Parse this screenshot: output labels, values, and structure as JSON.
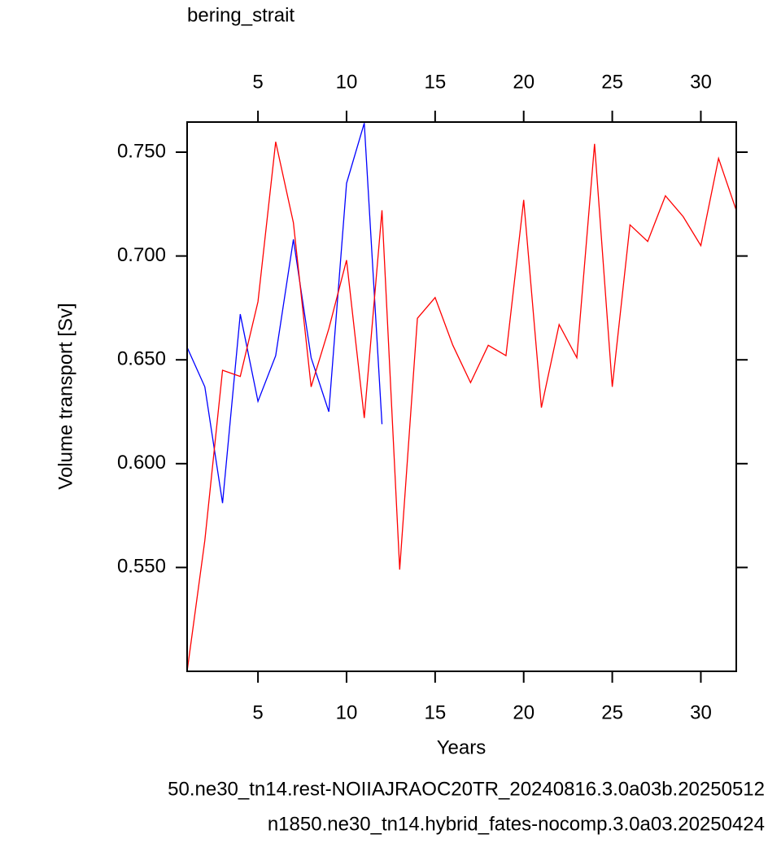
{
  "chart_data": {
    "type": "line",
    "title": "bering_strait",
    "x_label": "Years",
    "y_label": "Volume transport [Sv]",
    "x": [
      1,
      2,
      3,
      4,
      5,
      6,
      7,
      8,
      9,
      10,
      11,
      12,
      13,
      14,
      15,
      16,
      17,
      18,
      19,
      20,
      21,
      22,
      23,
      24,
      25,
      26,
      27,
      28,
      29,
      30,
      31,
      32
    ],
    "xlim": [
      1,
      32
    ],
    "xticks": [
      5,
      10,
      15,
      20,
      25,
      30
    ],
    "x2lim": [
      1,
      32
    ],
    "x2ticks": [
      5,
      10,
      15,
      20,
      25,
      30
    ],
    "ylim": [
      0.5,
      0.7645
    ],
    "yticks": [
      {
        "value": 0.55,
        "label": "0.550"
      },
      {
        "value": 0.6,
        "label": "0.600"
      },
      {
        "value": 0.65,
        "label": "0.650"
      },
      {
        "value": 0.7,
        "label": "0.700"
      },
      {
        "value": 0.75,
        "label": "0.750"
      }
    ],
    "series": [
      {
        "name": "50.ne30_tn14.rest-NOIIAJRAOC20TR_20240816.3.0a03b.20250512",
        "color": "#0000ff",
        "axis": "x",
        "values": [
          0.656,
          0.637,
          0.581,
          0.672,
          0.63,
          0.652,
          0.708,
          0.651,
          0.625,
          0.735,
          0.764,
          0.619,
          null,
          null,
          null,
          null,
          null,
          null,
          null,
          null,
          null,
          null,
          null,
          null,
          null,
          null,
          null,
          null,
          null,
          null,
          null,
          null
        ]
      },
      {
        "name": "n1850.ne30_tn14.hybrid_fates-nocomp.3.0a03.20250424",
        "color": "#ff0000",
        "axis": "x2",
        "values": [
          0.5,
          0.563,
          0.645,
          0.642,
          0.678,
          0.755,
          0.716,
          0.637,
          0.665,
          0.698,
          0.622,
          0.722,
          0.549,
          0.67,
          0.68,
          0.657,
          0.639,
          0.657,
          0.652,
          0.727,
          0.627,
          0.667,
          0.651,
          0.754,
          0.637,
          0.715,
          0.707,
          0.729,
          0.719,
          0.705,
          0.747,
          0.722
        ]
      }
    ]
  }
}
